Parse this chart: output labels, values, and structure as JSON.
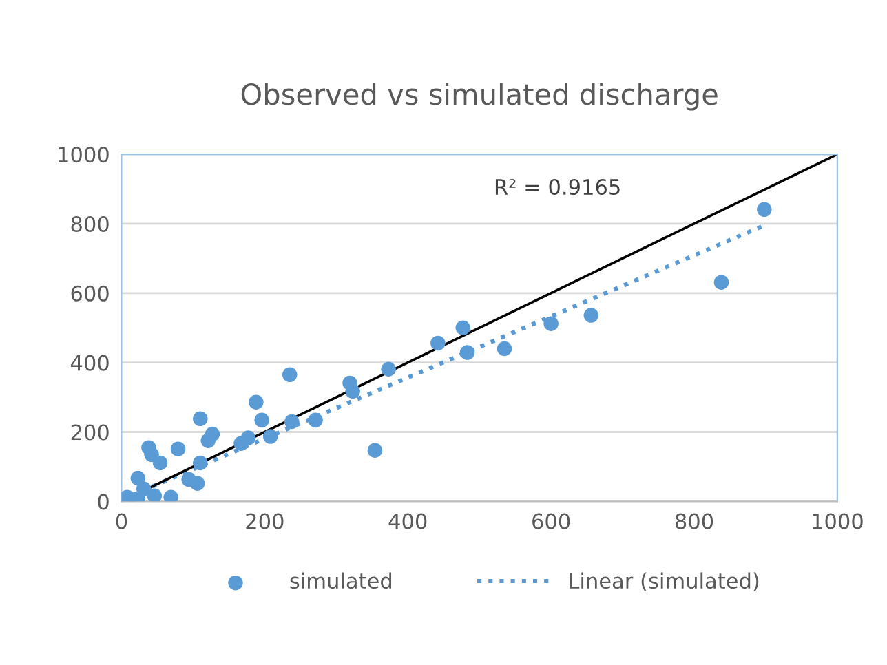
{
  "chart_data": {
    "type": "scatter",
    "title": "Observed vs simulated discharge",
    "xlim": [
      0,
      1000
    ],
    "ylim": [
      0,
      1000
    ],
    "xticks": [
      0,
      200,
      400,
      600,
      800,
      1000
    ],
    "yticks": [
      0,
      200,
      400,
      600,
      800,
      1000
    ],
    "grid": "y",
    "legend": "bottom",
    "annotations": [
      "R² = 0.9165"
    ],
    "series": [
      {
        "name": "simulated",
        "marker": "circle",
        "color": "#5b9bd5",
        "x": [
          898,
          838,
          656,
          600,
          535,
          483,
          477,
          442,
          373,
          323,
          319,
          354,
          271,
          238,
          235,
          208,
          196,
          188,
          177,
          167,
          127,
          121,
          110,
          110,
          106,
          94,
          79,
          69,
          54,
          42,
          38,
          23,
          31,
          15,
          8,
          46,
          23
        ],
        "values": [
          841,
          631,
          536,
          512,
          440,
          429,
          500,
          456,
          381,
          317,
          341,
          147,
          234,
          230,
          365,
          187,
          234,
          286,
          183,
          167,
          194,
          175,
          238,
          111,
          52,
          63,
          151,
          12,
          111,
          135,
          155,
          67,
          36,
          null,
          12,
          16,
          8
        ]
      },
      {
        "name": "Linear (simulated)",
        "type": "line",
        "marker": "none",
        "line_style": "dotted",
        "color": "#5b9bd5",
        "x": [
          0,
          898
        ],
        "values": [
          5,
          795
        ]
      },
      {
        "type": "line",
        "marker": "none",
        "line_style": "solid",
        "color": "#000000",
        "x": [
          0,
          1000
        ],
        "values": [
          0,
          1000
        ]
      }
    ]
  }
}
